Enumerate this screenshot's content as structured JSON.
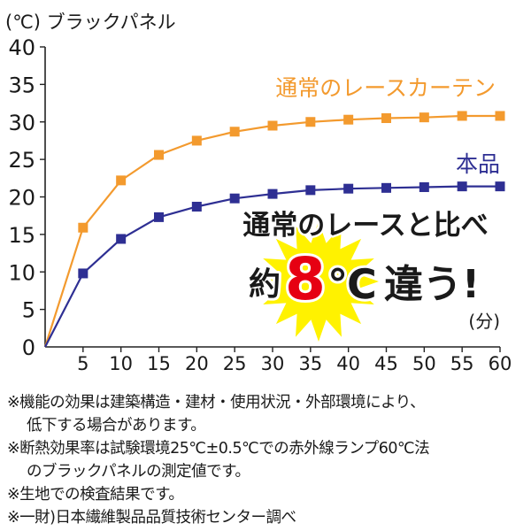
{
  "chart_data": {
    "type": "line",
    "unit_label": "(℃) ブラックパネル",
    "x_unit_label": "(分)",
    "x": [
      0,
      5,
      10,
      15,
      20,
      25,
      30,
      35,
      40,
      45,
      50,
      55,
      60
    ],
    "xlim": [
      0,
      60
    ],
    "ylim": [
      0,
      40
    ],
    "x_ticks": [
      "5",
      "10",
      "15",
      "20",
      "25",
      "30",
      "35",
      "40",
      "45",
      "50",
      "55",
      "60"
    ],
    "y_ticks": [
      "0",
      "5",
      "10",
      "15",
      "20",
      "25",
      "30",
      "35",
      "40"
    ],
    "grid": false,
    "series": [
      {
        "name": "通常のレースカーテン",
        "color": "#f39a2e",
        "values": [
          0,
          15.9,
          22.2,
          25.6,
          27.5,
          28.7,
          29.5,
          30.0,
          30.3,
          30.5,
          30.6,
          30.8,
          30.8
        ]
      },
      {
        "name": "本品",
        "color": "#2e2f93",
        "values": [
          0,
          9.8,
          14.4,
          17.3,
          18.7,
          19.8,
          20.4,
          20.9,
          21.1,
          21.2,
          21.3,
          21.4,
          21.4
        ]
      }
    ],
    "callout": {
      "line1": "通常のレースと比べ",
      "pre": "約",
      "number": "8",
      "unit": "℃",
      "post": "違う!",
      "burst_color": "#fff200",
      "number_color": "#e60012"
    }
  },
  "notes": [
    "※機能の効果は建築構造・建材・使用状況・外部環境により、",
    "低下する場合があります。",
    "※断熱効果率は試験環境25℃±0.5℃での赤外線ランプ60℃法",
    "のブラックパネルの測定値です。",
    "※生地での検査結果です。",
    "※一財)日本繊維製品品質技術センター調べ"
  ]
}
